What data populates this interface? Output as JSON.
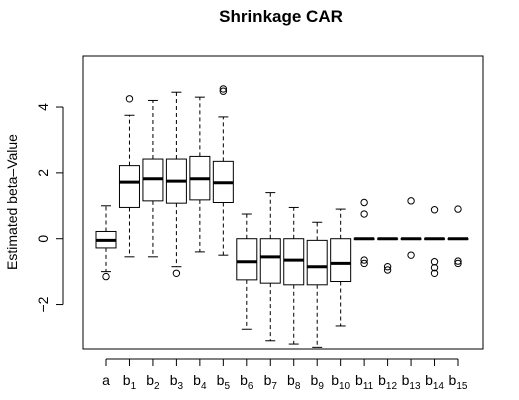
{
  "chart_data": {
    "type": "boxplot",
    "title": "Shrinkage CAR",
    "xlabel": "",
    "ylabel": "Estimated beta–Value",
    "ylim": [
      -3.35,
      5.55
    ],
    "yticks": [
      -2,
      0,
      2,
      4
    ],
    "categories": [
      {
        "main": "a",
        "sub": ""
      },
      {
        "main": "b",
        "sub": "1"
      },
      {
        "main": "b",
        "sub": "2"
      },
      {
        "main": "b",
        "sub": "3"
      },
      {
        "main": "b",
        "sub": "4"
      },
      {
        "main": "b",
        "sub": "5"
      },
      {
        "main": "b",
        "sub": "6"
      },
      {
        "main": "b",
        "sub": "7"
      },
      {
        "main": "b",
        "sub": "8"
      },
      {
        "main": "b",
        "sub": "9"
      },
      {
        "main": "b",
        "sub": "10"
      },
      {
        "main": "b",
        "sub": "11"
      },
      {
        "main": "b",
        "sub": "12"
      },
      {
        "main": "b",
        "sub": "13"
      },
      {
        "main": "b",
        "sub": "14"
      },
      {
        "main": "b",
        "sub": "15"
      }
    ],
    "boxes": [
      {
        "low": -1.0,
        "q1": -0.28,
        "median": -0.05,
        "q3": 0.22,
        "high": 1.0,
        "outliers": [
          -1.15
        ]
      },
      {
        "low": -0.55,
        "q1": 0.95,
        "median": 1.72,
        "q3": 2.22,
        "high": 3.75,
        "outliers": [
          4.25
        ]
      },
      {
        "low": -0.55,
        "q1": 1.15,
        "median": 1.82,
        "q3": 2.42,
        "high": 4.2,
        "outliers": []
      },
      {
        "low": -0.85,
        "q1": 1.08,
        "median": 1.75,
        "q3": 2.42,
        "high": 4.45,
        "outliers": [
          -1.05
        ]
      },
      {
        "low": -0.4,
        "q1": 1.18,
        "median": 1.82,
        "q3": 2.5,
        "high": 4.3,
        "outliers": []
      },
      {
        "low": -0.5,
        "q1": 1.1,
        "median": 1.7,
        "q3": 2.35,
        "high": 3.7,
        "outliers": [
          4.48,
          4.55
        ]
      },
      {
        "low": -2.75,
        "q1": -1.25,
        "median": -0.7,
        "q3": 0.0,
        "high": 0.75,
        "outliers": []
      },
      {
        "low": -3.1,
        "q1": -1.35,
        "median": -0.55,
        "q3": 0.0,
        "high": 1.4,
        "outliers": []
      },
      {
        "low": -3.2,
        "q1": -1.4,
        "median": -0.65,
        "q3": 0.0,
        "high": 0.95,
        "outliers": []
      },
      {
        "low": -3.3,
        "q1": -1.4,
        "median": -0.85,
        "q3": -0.05,
        "high": 0.5,
        "outliers": []
      },
      {
        "low": -2.65,
        "q1": -1.3,
        "median": -0.75,
        "q3": 0.0,
        "high": 0.9,
        "outliers": []
      },
      {
        "low": 0.0,
        "q1": 0.0,
        "median": 0.0,
        "q3": 0.0,
        "high": 0.0,
        "outliers": [
          1.1,
          0.75,
          -0.65,
          -0.75
        ]
      },
      {
        "low": 0.0,
        "q1": 0.0,
        "median": 0.0,
        "q3": 0.0,
        "high": 0.0,
        "outliers": [
          -0.85,
          -0.95
        ]
      },
      {
        "low": 0.0,
        "q1": 0.0,
        "median": 0.0,
        "q3": 0.0,
        "high": 0.0,
        "outliers": [
          1.15,
          -0.5
        ]
      },
      {
        "low": 0.0,
        "q1": 0.0,
        "median": 0.0,
        "q3": 0.0,
        "high": 0.0,
        "outliers": [
          0.88,
          -0.7,
          -0.88,
          -1.05
        ]
      },
      {
        "low": 0.0,
        "q1": 0.0,
        "median": 0.0,
        "q3": 0.0,
        "high": 0.0,
        "outliers": [
          0.9,
          -0.68,
          -0.75
        ]
      }
    ]
  }
}
